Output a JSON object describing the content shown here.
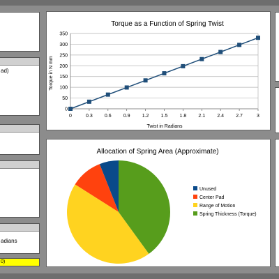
{
  "left_panels": {
    "fragment_partial": "ad)",
    "fragment_radians": "adians",
    "fragment_value": "0)"
  },
  "colors": {
    "line": "#1f4e79",
    "unused": "#0a4a8a",
    "center_pad": "#ff420e",
    "range_of_motion": "#ffd320",
    "spring_thickness": "#579d1c"
  },
  "chart_data": [
    {
      "type": "line",
      "title": "Torque as a Function of Spring Twist",
      "xlabel": "Twist in Radians",
      "ylabel": "Torque in N mm",
      "x": [
        0,
        0.3,
        0.6,
        0.9,
        1.2,
        1.5,
        1.8,
        2.1,
        2.4,
        2.7,
        3
      ],
      "y": [
        0,
        33,
        66,
        99,
        132,
        165,
        198,
        231,
        264,
        297,
        330
      ],
      "x_ticks": [
        "0",
        "0.3",
        "0.6",
        "0.9",
        "1.2",
        "1.5",
        "1.8",
        "2.1",
        "2.4",
        "2.7",
        "3"
      ],
      "y_ticks": [
        "0",
        "50",
        "100",
        "150",
        "200",
        "250",
        "300",
        "350"
      ],
      "xlim": [
        0,
        3
      ],
      "ylim": [
        0,
        350
      ],
      "grid": true,
      "marker": "square"
    },
    {
      "type": "pie",
      "title": "Allocation of Spring Area (Approximate)",
      "categories": [
        "Unused",
        "Center Pad",
        "Range of Motion",
        "Spring Thickness (Torque)"
      ],
      "values": [
        6,
        10,
        44,
        40
      ],
      "legend": "right"
    }
  ]
}
